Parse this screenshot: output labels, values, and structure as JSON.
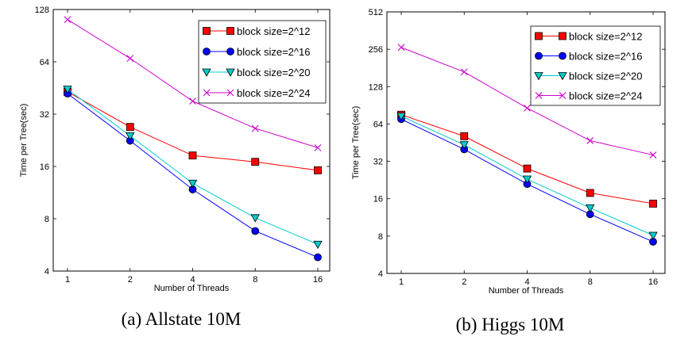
{
  "colors": {
    "block size=2^12": "#ff0000",
    "block size=2^16": "#0000ff",
    "block size=2^20": "#00cccc",
    "block size=2^24": "#cc00cc"
  },
  "markers": {
    "block size=2^12": "square",
    "block size=2^16": "circle",
    "block size=2^20": "triangle-down",
    "block size=2^24": "x"
  },
  "chart_data": [
    {
      "type": "line",
      "caption": "(a) Allstate 10M",
      "xlabel": "Number of Threads",
      "ylabel": "Time per Tree(sec)",
      "x": [
        1,
        2,
        4,
        8,
        16
      ],
      "xscale": "log2",
      "yscale": "log2",
      "xticks": [
        "1",
        "2",
        "4",
        "8",
        "16"
      ],
      "yticks": [
        "4",
        "8",
        "16",
        "32",
        "64",
        "128"
      ],
      "ylim": [
        4,
        128
      ],
      "legend_position": "top-right",
      "grid": false,
      "series": [
        {
          "name": "block size=2^12",
          "values": [
            43,
            27,
            18.5,
            17,
            15.2
          ]
        },
        {
          "name": "block size=2^16",
          "values": [
            42,
            22.5,
            11.8,
            6.8,
            4.8
          ]
        },
        {
          "name": "block size=2^20",
          "values": [
            44.5,
            24,
            12.8,
            8.1,
            5.7
          ]
        },
        {
          "name": "block size=2^24",
          "values": [
            112,
            67,
            38,
            26.5,
            20.5
          ]
        }
      ]
    },
    {
      "type": "line",
      "caption": "(b) Higgs 10M",
      "xlabel": "Number of Threads",
      "ylabel": "Time per Tree(sec)",
      "x": [
        1,
        2,
        4,
        8,
        16
      ],
      "xscale": "log2",
      "yscale": "log2",
      "xticks": [
        "1",
        "2",
        "4",
        "8",
        "16"
      ],
      "yticks": [
        "4",
        "8",
        "16",
        "32",
        "64",
        "128",
        "256",
        "512"
      ],
      "ylim": [
        4,
        512
      ],
      "legend_position": "top-right",
      "grid": false,
      "series": [
        {
          "name": "block size=2^12",
          "values": [
            76,
            51,
            28,
            17.8,
            14.6
          ]
        },
        {
          "name": "block size=2^16",
          "values": [
            70,
            40,
            21,
            12,
            7.2
          ]
        },
        {
          "name": "block size=2^20",
          "values": [
            74,
            43.5,
            23,
            13.5,
            8.1
          ]
        },
        {
          "name": "block size=2^24",
          "values": [
            265,
            168,
            86,
            47,
            36
          ]
        }
      ]
    }
  ]
}
